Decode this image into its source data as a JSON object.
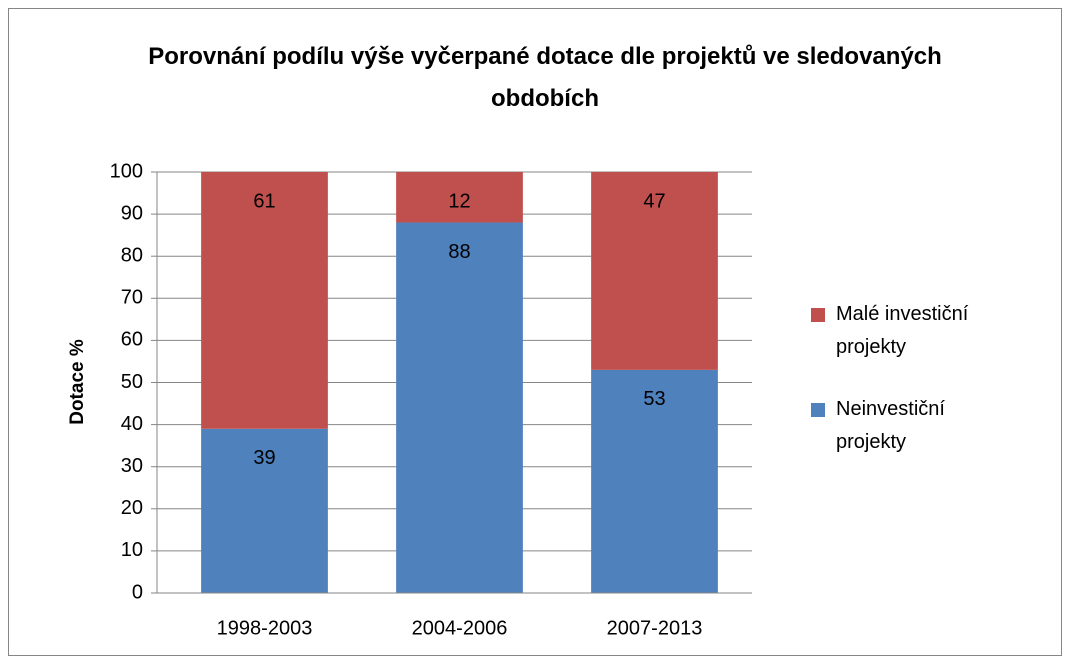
{
  "chart_data": {
    "type": "stacked_bar",
    "title": "Porovnání podílu výše vyčerpané dotace dle projektů ve sledovaných obdobích",
    "ylabel": "Dotace %",
    "categories": [
      "1998-2003",
      "2004-2006",
      "2007-2013"
    ],
    "series": [
      {
        "name": "Neinvestiční projekty",
        "color": "#4f81bd",
        "values": [
          39,
          88,
          53
        ]
      },
      {
        "name": "Malé investiční projekty",
        "color": "#c0504d",
        "values": [
          61,
          12,
          47
        ]
      }
    ],
    "ylim": [
      0,
      100
    ],
    "yticks": [
      0,
      10,
      20,
      30,
      40,
      50,
      60,
      70,
      80,
      90,
      100
    ],
    "grid": true,
    "legend": "right"
  }
}
